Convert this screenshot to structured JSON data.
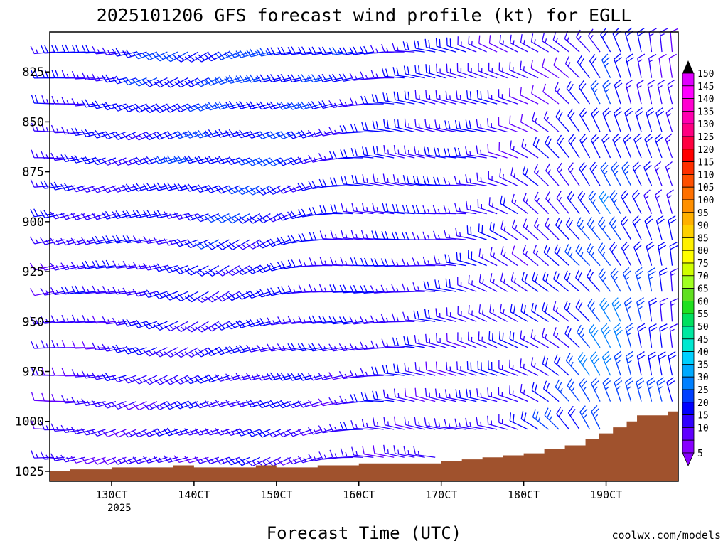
{
  "chart_data": {
    "type": "wind-barb-profile",
    "title": "2025101206 GFS forecast wind profile (kt) for EGLL",
    "xlabel": "Forecast Time (UTC)",
    "ylabel": "",
    "credit": "coolwx.com/models",
    "x_ticks": [
      {
        "label": "130CT",
        "hours": 18
      },
      {
        "label": "140CT",
        "hours": 42
      },
      {
        "label": "150CT",
        "hours": 66
      },
      {
        "label": "160CT",
        "hours": 90
      },
      {
        "label": "170CT",
        "hours": 114
      },
      {
        "label": "180CT",
        "hours": 138
      },
      {
        "label": "190CT",
        "hours": 162
      }
    ],
    "x_year_label": "2025",
    "xlim_hours": [
      0,
      183
    ],
    "y_axis": "pressure (hPa)",
    "y_ticks": [
      825,
      850,
      875,
      900,
      925,
      950,
      975,
      1000,
      1025
    ],
    "ylim": [
      1030,
      805
    ],
    "pressure_levels": [
      815,
      828,
      841,
      855,
      868,
      882,
      896,
      909,
      922,
      935,
      950,
      963,
      977,
      990,
      1004,
      1018
    ],
    "time_step_hours": 3,
    "time_count": 62,
    "wind_keyframes": [
      {
        "hours": 0,
        "dir": 265,
        "spd_low": 12,
        "spd_high": 17
      },
      {
        "hours": 24,
        "dir": 255,
        "spd_low": 14,
        "spd_high": 20
      },
      {
        "hours": 48,
        "dir": 245,
        "spd_low": 15,
        "spd_high": 24
      },
      {
        "hours": 66,
        "dir": 250,
        "spd_low": 16,
        "spd_high": 24
      },
      {
        "hours": 84,
        "dir": 265,
        "spd_low": 14,
        "spd_high": 20
      },
      {
        "hours": 102,
        "dir": 275,
        "spd_low": 15,
        "spd_high": 19
      },
      {
        "hours": 120,
        "dir": 280,
        "spd_low": 14,
        "spd_high": 18
      },
      {
        "hours": 138,
        "dir": 300,
        "spd_low": 18,
        "spd_high": 12
      },
      {
        "hours": 150,
        "dir": 315,
        "spd_low": 22,
        "spd_high": 14
      },
      {
        "hours": 162,
        "dir": 330,
        "spd_low": 32,
        "spd_high": 20
      },
      {
        "hours": 174,
        "dir": 345,
        "spd_low": 24,
        "spd_high": 16
      },
      {
        "hours": 183,
        "dir": 350,
        "spd_low": 18,
        "spd_high": 12
      }
    ],
    "surface_pressure": [
      {
        "hours": 0,
        "p": 1025
      },
      {
        "hours": 6,
        "p": 1024
      },
      {
        "hours": 12,
        "p": 1024
      },
      {
        "hours": 18,
        "p": 1023
      },
      {
        "hours": 30,
        "p": 1023
      },
      {
        "hours": 36,
        "p": 1022
      },
      {
        "hours": 42,
        "p": 1023
      },
      {
        "hours": 54,
        "p": 1023
      },
      {
        "hours": 60,
        "p": 1022
      },
      {
        "hours": 66,
        "p": 1023
      },
      {
        "hours": 72,
        "p": 1023
      },
      {
        "hours": 78,
        "p": 1022
      },
      {
        "hours": 84,
        "p": 1022
      },
      {
        "hours": 90,
        "p": 1021
      },
      {
        "hours": 108,
        "p": 1021
      },
      {
        "hours": 114,
        "p": 1020
      },
      {
        "hours": 120,
        "p": 1019
      },
      {
        "hours": 126,
        "p": 1018
      },
      {
        "hours": 132,
        "p": 1017
      },
      {
        "hours": 138,
        "p": 1016
      },
      {
        "hours": 144,
        "p": 1014
      },
      {
        "hours": 150,
        "p": 1012
      },
      {
        "hours": 156,
        "p": 1009
      },
      {
        "hours": 160,
        "p": 1006
      },
      {
        "hours": 164,
        "p": 1003
      },
      {
        "hours": 168,
        "p": 1000
      },
      {
        "hours": 171,
        "p": 997
      },
      {
        "hours": 177,
        "p": 997
      },
      {
        "hours": 180,
        "p": 995
      },
      {
        "hours": 183,
        "p": 995
      }
    ],
    "colorbar": {
      "min": 5,
      "max": 150,
      "step": 5,
      "labels": [
        "5",
        "10",
        "15",
        "20",
        "25",
        "30",
        "35",
        "40",
        "45",
        "50",
        "55",
        "60",
        "65",
        "70",
        "75",
        "80",
        "85",
        "90",
        "95",
        "100",
        "105",
        "110",
        "115",
        "120",
        "125",
        "130",
        "135",
        "140",
        "145",
        "150"
      ],
      "colors": [
        "#8800ff",
        "#6000ff",
        "#3000ff",
        "#0000ff",
        "#0040ff",
        "#0080ff",
        "#00aaff",
        "#00d0ff",
        "#00e8d0",
        "#00e8a0",
        "#00e060",
        "#20e020",
        "#60e020",
        "#a0ff20",
        "#d0ff00",
        "#ffff00",
        "#fff000",
        "#ffd000",
        "#ffb000",
        "#ff9000",
        "#ff7000",
        "#ff5000",
        "#ff3000",
        "#ff0000",
        "#ff0040",
        "#ff0080",
        "#ff00b0",
        "#ff00d0",
        "#ff00ff",
        "#e000ff"
      ]
    },
    "colors": {
      "terrain": "#a0522d",
      "frame": "#000000",
      "credit": "#cc3344"
    }
  }
}
